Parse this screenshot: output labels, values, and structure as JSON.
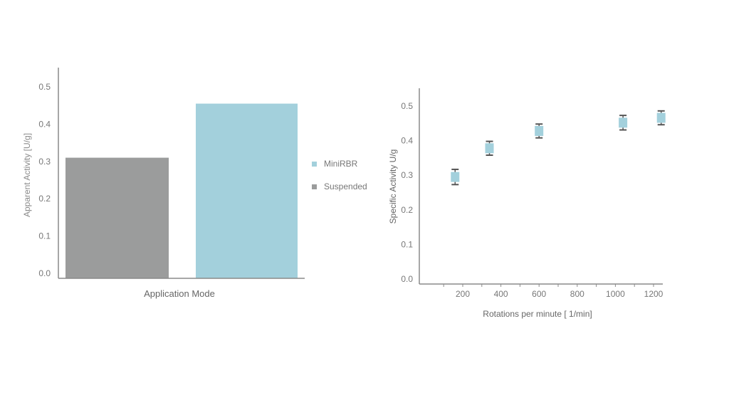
{
  "colors": {
    "minirbr": "#a3d0dc",
    "suspended": "#9b9c9c",
    "axis": "#8a8a8a",
    "tick_text": "#777777",
    "error_bar": "#555555"
  },
  "chart_data": [
    {
      "type": "bar",
      "xlabel": "Application Mode",
      "ylabel": "Apparent Activity [U/g]",
      "ylim": [
        0,
        0.55
      ],
      "yticks": [
        "0.0",
        "0.1",
        "0.2",
        "0.3",
        "0.4",
        "0.5"
      ],
      "grid": false,
      "legend_position": "right",
      "series": [
        {
          "name": "Suspended",
          "value": 0.31,
          "color": "#9b9c9c"
        },
        {
          "name": "MiniRBR",
          "value": 0.455,
          "color": "#a3d0dc"
        }
      ],
      "legend": [
        "MiniRBR",
        "Suspended"
      ]
    },
    {
      "type": "scatter",
      "xlabel": "Rotations per minute [ 1/min]",
      "ylabel": "Specific Activity U/g",
      "xlim": [
        0,
        1300
      ],
      "ylim": [
        0,
        0.55
      ],
      "xticks": [
        "200",
        "400",
        "600",
        "800",
        "1000",
        "1200"
      ],
      "yticks": [
        "0.0",
        "0.1",
        "0.2",
        "0.3",
        "0.4",
        "0.5"
      ],
      "grid": false,
      "points": [
        {
          "x": 160,
          "y": 0.295,
          "err": 0.022
        },
        {
          "x": 340,
          "y": 0.378,
          "err": 0.02
        },
        {
          "x": 600,
          "y": 0.428,
          "err": 0.02
        },
        {
          "x": 1040,
          "y": 0.452,
          "err": 0.021
        },
        {
          "x": 1240,
          "y": 0.466,
          "err": 0.02
        }
      ]
    }
  ]
}
